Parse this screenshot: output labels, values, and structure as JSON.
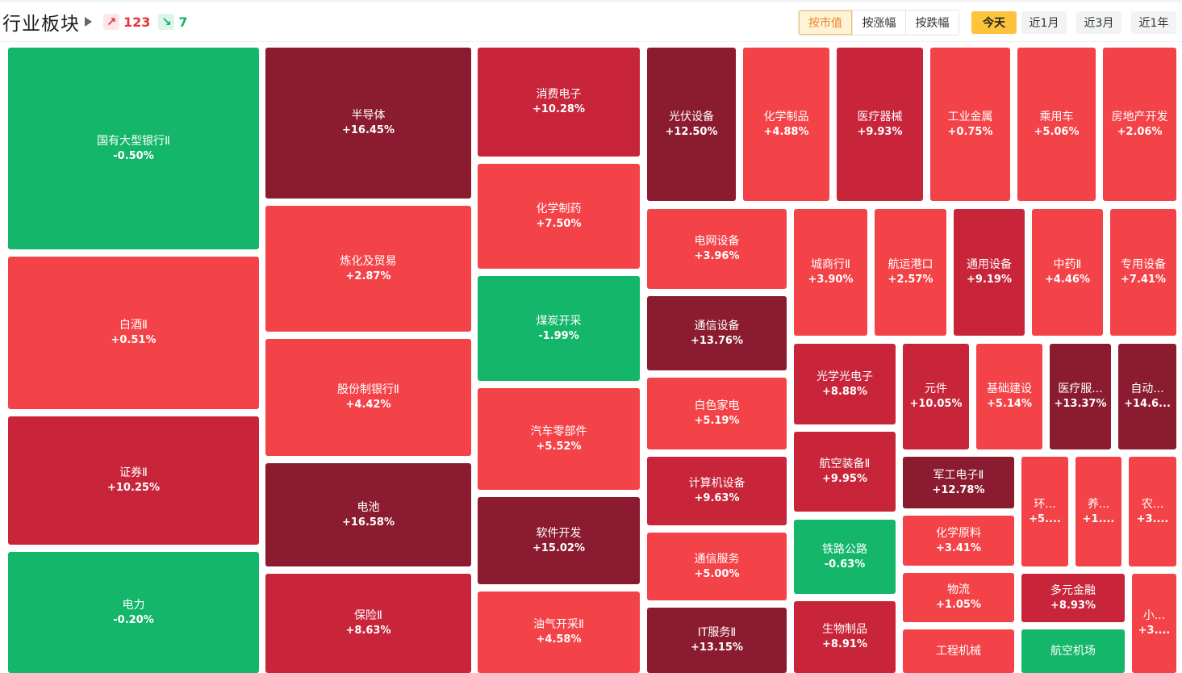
{
  "header": {
    "title": "行业板块",
    "up_count": "123",
    "down_count": "7",
    "up_icon": "↗",
    "down_icon": "↘",
    "sort_buttons": [
      "按市值",
      "按涨幅",
      "按跌幅"
    ],
    "period_buttons": [
      "今天",
      "近1月",
      "近3月",
      "近1年"
    ],
    "active_sort": 0,
    "active_period": 0
  },
  "colors": {
    "green": "#14b66a",
    "light_red": "#f44348",
    "mid_red": "#c8253b",
    "dark_red": "#8b1c2f"
  },
  "tiles": [
    {
      "name": "国有大型银行Ⅱ",
      "pct": "-0.50%",
      "level": "green"
    },
    {
      "name": "白酒Ⅱ",
      "pct": "+0.51%",
      "level": "light"
    },
    {
      "name": "证券Ⅱ",
      "pct": "+10.25%",
      "level": "mid"
    },
    {
      "name": "电力",
      "pct": "-0.20%",
      "level": "green"
    },
    {
      "name": "半导体",
      "pct": "+16.45%",
      "level": "dark"
    },
    {
      "name": "炼化及贸易",
      "pct": "+2.87%",
      "level": "light"
    },
    {
      "name": "股份制银行Ⅱ",
      "pct": "+4.42%",
      "level": "light"
    },
    {
      "name": "电池",
      "pct": "+16.58%",
      "level": "dark"
    },
    {
      "name": "保险Ⅱ",
      "pct": "+8.63%",
      "level": "mid"
    },
    {
      "name": "消费电子",
      "pct": "+10.28%",
      "level": "mid"
    },
    {
      "name": "化学制药",
      "pct": "+7.50%",
      "level": "light"
    },
    {
      "name": "煤炭开采",
      "pct": "-1.99%",
      "level": "green"
    },
    {
      "name": "汽车零部件",
      "pct": "+5.52%",
      "level": "light"
    },
    {
      "name": "软件开发",
      "pct": "+15.02%",
      "level": "dark"
    },
    {
      "name": "油气开采Ⅱ",
      "pct": "+4.58%",
      "level": "light"
    },
    {
      "name": "光伏设备",
      "pct": "+12.50%",
      "level": "dark"
    },
    {
      "name": "化学制品",
      "pct": "+4.88%",
      "level": "light"
    },
    {
      "name": "医疗器械",
      "pct": "+9.93%",
      "level": "mid"
    },
    {
      "name": "工业金属",
      "pct": "+0.75%",
      "level": "light"
    },
    {
      "name": "乘用车",
      "pct": "+5.06%",
      "level": "light"
    },
    {
      "name": "房地产开发",
      "pct": "+2.06%",
      "level": "light"
    },
    {
      "name": "电网设备",
      "pct": "+3.96%",
      "level": "light"
    },
    {
      "name": "通信设备",
      "pct": "+13.76%",
      "level": "dark"
    },
    {
      "name": "白色家电",
      "pct": "+5.19%",
      "level": "light"
    },
    {
      "name": "计算机设备",
      "pct": "+9.63%",
      "level": "mid"
    },
    {
      "name": "通信服务",
      "pct": "+5.00%",
      "level": "light"
    },
    {
      "name": "IT服务Ⅱ",
      "pct": "+13.15%",
      "level": "dark"
    },
    {
      "name": "城商行Ⅱ",
      "pct": "+3.90%",
      "level": "light"
    },
    {
      "name": "航运港口",
      "pct": "+2.57%",
      "level": "light"
    },
    {
      "name": "通用设备",
      "pct": "+9.19%",
      "level": "mid"
    },
    {
      "name": "中药Ⅱ",
      "pct": "+4.46%",
      "level": "light"
    },
    {
      "name": "专用设备",
      "pct": "+7.41%",
      "level": "light"
    },
    {
      "name": "光学光电子",
      "pct": "+8.88%",
      "level": "mid"
    },
    {
      "name": "元件",
      "pct": "+10.05%",
      "level": "mid"
    },
    {
      "name": "基础建设",
      "pct": "+5.14%",
      "level": "light"
    },
    {
      "name": "医疗服...",
      "pct": "+13.37%",
      "level": "dark"
    },
    {
      "name": "自动...",
      "pct": "+14.6...",
      "level": "dark"
    },
    {
      "name": "航空装备Ⅱ",
      "pct": "+9.95%",
      "level": "mid"
    },
    {
      "name": "军工电子Ⅱ",
      "pct": "+12.78%",
      "level": "dark"
    },
    {
      "name": "环...",
      "pct": "+5....",
      "level": "light"
    },
    {
      "name": "养...",
      "pct": "+1....",
      "level": "light"
    },
    {
      "name": "农...",
      "pct": "+3....",
      "level": "light"
    },
    {
      "name": "铁路公路",
      "pct": "-0.63%",
      "level": "green"
    },
    {
      "name": "化学原料",
      "pct": "+3.41%",
      "level": "light"
    },
    {
      "name": "物流",
      "pct": "+1.05%",
      "level": "light"
    },
    {
      "name": "多元金融",
      "pct": "+8.93%",
      "level": "mid"
    },
    {
      "name": "小...",
      "pct": "+3....",
      "level": "light"
    },
    {
      "name": "生物制品",
      "pct": "+8.91%",
      "level": "mid"
    },
    {
      "name": "工程机械",
      "pct": "",
      "level": "light"
    },
    {
      "name": "航空机场",
      "pct": "",
      "level": "green"
    }
  ]
}
